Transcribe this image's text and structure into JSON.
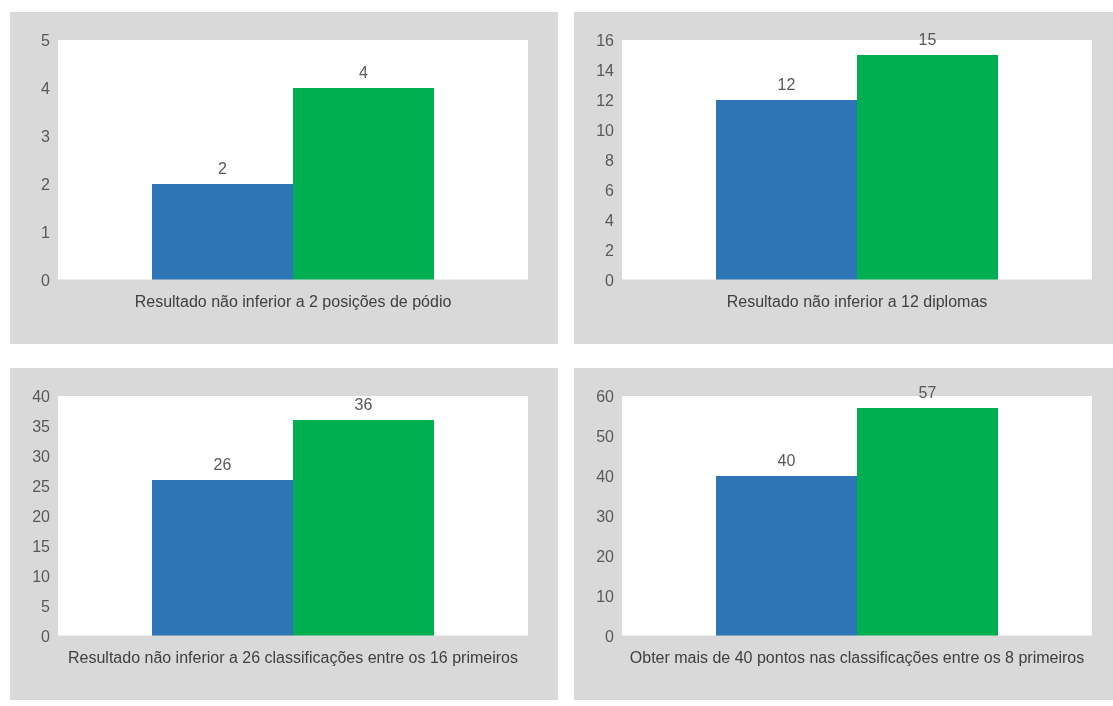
{
  "chart_data": [
    {
      "type": "bar",
      "categories": [
        "Resultado não inferior a 2 posições de pódio"
      ],
      "series": [
        {
          "color": "#2e75b6",
          "values": [
            2
          ]
        },
        {
          "color": "#00b050",
          "values": [
            4
          ]
        }
      ],
      "ylim": [
        0,
        5
      ],
      "yticks": [
        0,
        1,
        2,
        3,
        4,
        5
      ],
      "data_labels": true
    },
    {
      "type": "bar",
      "categories": [
        "Resultado não inferior a 12 diplomas"
      ],
      "series": [
        {
          "color": "#2e75b6",
          "values": [
            12
          ]
        },
        {
          "color": "#00b050",
          "values": [
            15
          ]
        }
      ],
      "ylim": [
        0,
        16
      ],
      "yticks": [
        0,
        2,
        4,
        6,
        8,
        10,
        12,
        14,
        16
      ],
      "data_labels": true
    },
    {
      "type": "bar",
      "categories": [
        "Resultado não inferior a 26 classificações entre os 16 primeiros"
      ],
      "series": [
        {
          "color": "#2e75b6",
          "values": [
            26
          ]
        },
        {
          "color": "#00b050",
          "values": [
            36
          ]
        }
      ],
      "ylim": [
        0,
        40
      ],
      "yticks": [
        0,
        5,
        10,
        15,
        20,
        25,
        30,
        35,
        40
      ],
      "data_labels": true
    },
    {
      "type": "bar",
      "categories": [
        "Obter mais de 40 pontos nas classificações entre os 8 primeiros"
      ],
      "series": [
        {
          "color": "#2e75b6",
          "values": [
            40
          ]
        },
        {
          "color": "#00b050",
          "values": [
            57
          ]
        }
      ],
      "ylim": [
        0,
        60
      ],
      "yticks": [
        0,
        10,
        20,
        30,
        40,
        50,
        60
      ],
      "data_labels": true
    }
  ]
}
